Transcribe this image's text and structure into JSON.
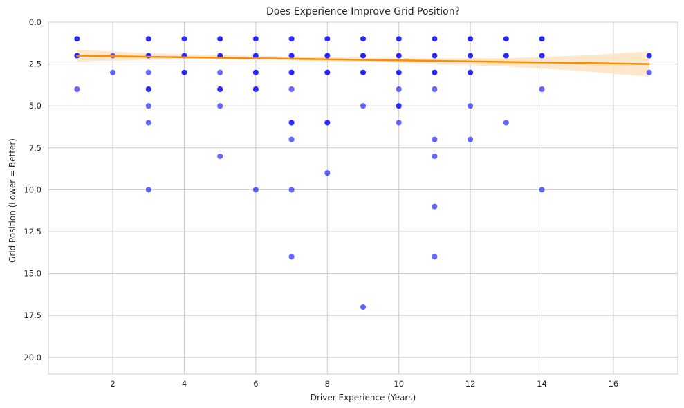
{
  "chart_data": {
    "type": "scatter",
    "title": "Does Experience Improve Grid Position?",
    "xlabel": "Driver Experience (Years)",
    "ylabel": "Grid Position (Lower = Better)",
    "xlim": [
      0.2,
      17.8
    ],
    "ylim": [
      21,
      0
    ],
    "y_inverted": true,
    "grid": true,
    "xticks": [
      2,
      4,
      6,
      8,
      10,
      12,
      14,
      16
    ],
    "xtick_labels": [
      "2",
      "4",
      "6",
      "8",
      "10",
      "12",
      "14",
      "16"
    ],
    "yticks": [
      0,
      2.5,
      5,
      7.5,
      10,
      12.5,
      15,
      17.5,
      20
    ],
    "ytick_labels": [
      "0.0",
      "2.5",
      "5.0",
      "7.5",
      "10.0",
      "12.5",
      "15.0",
      "17.5",
      "20.0"
    ],
    "point_color": "#0000ff",
    "point_opacity": 0.6,
    "trend_color": "#ff8c00",
    "band_color": "#ffe3c2",
    "points": [
      [
        1,
        1
      ],
      [
        1,
        1
      ],
      [
        1,
        2
      ],
      [
        1,
        2
      ],
      [
        1,
        4
      ],
      [
        2,
        2
      ],
      [
        2,
        3
      ],
      [
        3,
        1
      ],
      [
        3,
        1
      ],
      [
        3,
        2
      ],
      [
        3,
        2
      ],
      [
        3,
        3
      ],
      [
        3,
        4
      ],
      [
        3,
        4
      ],
      [
        3,
        5
      ],
      [
        3,
        6
      ],
      [
        3,
        10
      ],
      [
        4,
        1
      ],
      [
        4,
        1
      ],
      [
        4,
        2
      ],
      [
        4,
        2
      ],
      [
        4,
        3
      ],
      [
        4,
        3
      ],
      [
        5,
        1
      ],
      [
        5,
        1
      ],
      [
        5,
        2
      ],
      [
        5,
        2
      ],
      [
        5,
        3
      ],
      [
        5,
        4
      ],
      [
        5,
        4
      ],
      [
        5,
        5
      ],
      [
        5,
        8
      ],
      [
        6,
        1
      ],
      [
        6,
        1
      ],
      [
        6,
        2
      ],
      [
        6,
        2
      ],
      [
        6,
        3
      ],
      [
        6,
        3
      ],
      [
        6,
        4
      ],
      [
        6,
        4
      ],
      [
        6,
        10
      ],
      [
        7,
        1
      ],
      [
        7,
        1
      ],
      [
        7,
        2
      ],
      [
        7,
        2
      ],
      [
        7,
        3
      ],
      [
        7,
        3
      ],
      [
        7,
        4
      ],
      [
        7,
        6
      ],
      [
        7,
        6
      ],
      [
        7,
        7
      ],
      [
        7,
        10
      ],
      [
        7,
        14
      ],
      [
        8,
        1
      ],
      [
        8,
        1
      ],
      [
        8,
        2
      ],
      [
        8,
        2
      ],
      [
        8,
        3
      ],
      [
        8,
        3
      ],
      [
        8,
        6
      ],
      [
        8,
        6
      ],
      [
        8,
        9
      ],
      [
        9,
        1
      ],
      [
        9,
        1
      ],
      [
        9,
        2
      ],
      [
        9,
        2
      ],
      [
        9,
        3
      ],
      [
        9,
        3
      ],
      [
        9,
        5
      ],
      [
        9,
        17
      ],
      [
        10,
        1
      ],
      [
        10,
        1
      ],
      [
        10,
        2
      ],
      [
        10,
        2
      ],
      [
        10,
        3
      ],
      [
        10,
        3
      ],
      [
        10,
        4
      ],
      [
        10,
        5
      ],
      [
        10,
        5
      ],
      [
        10,
        6
      ],
      [
        11,
        1
      ],
      [
        11,
        1
      ],
      [
        11,
        2
      ],
      [
        11,
        2
      ],
      [
        11,
        3
      ],
      [
        11,
        3
      ],
      [
        11,
        4
      ],
      [
        11,
        7
      ],
      [
        11,
        8
      ],
      [
        11,
        11
      ],
      [
        11,
        14
      ],
      [
        12,
        1
      ],
      [
        12,
        1
      ],
      [
        12,
        2
      ],
      [
        12,
        2
      ],
      [
        12,
        3
      ],
      [
        12,
        3
      ],
      [
        12,
        5
      ],
      [
        12,
        7
      ],
      [
        13,
        1
      ],
      [
        13,
        1
      ],
      [
        13,
        2
      ],
      [
        13,
        2
      ],
      [
        13,
        6
      ],
      [
        14,
        1
      ],
      [
        14,
        1
      ],
      [
        14,
        2
      ],
      [
        14,
        2
      ],
      [
        14,
        4
      ],
      [
        14,
        10
      ],
      [
        17,
        2
      ],
      [
        17,
        2
      ],
      [
        17,
        3
      ]
    ],
    "trend": {
      "x": [
        1,
        17
      ],
      "y": [
        2.0,
        2.5
      ]
    },
    "band": {
      "x": [
        1,
        3,
        5,
        7,
        9,
        11,
        13,
        15,
        17
      ],
      "lower": [
        1.65,
        1.85,
        1.97,
        2.05,
        2.12,
        2.16,
        2.15,
        2.0,
        1.75
      ],
      "upper": [
        2.35,
        2.25,
        2.23,
        2.27,
        2.36,
        2.48,
        2.65,
        2.9,
        3.25
      ]
    }
  }
}
